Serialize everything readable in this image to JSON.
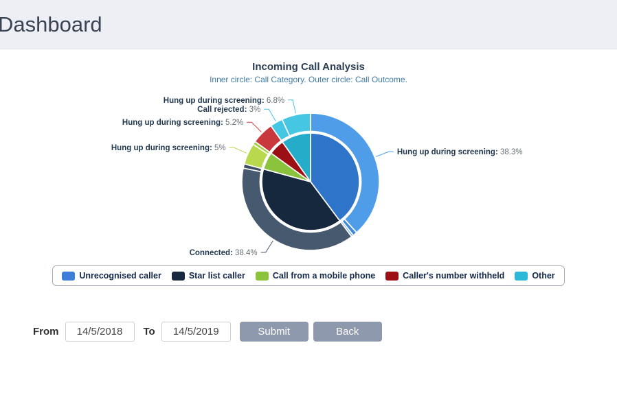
{
  "header": {
    "title": "Dashboard"
  },
  "chart_data": {
    "type": "pie",
    "variant": "two-ring-sunburst",
    "title": "Incoming Call Analysis",
    "subtitle": "Inner circle: Call Category. Outer circle: Call Outcome.",
    "inner_ring": {
      "name": "Call Category",
      "slices": [
        {
          "label": "Unrecognised caller",
          "value": 39.8,
          "color": "#2e74c9"
        },
        {
          "label": "Star list caller",
          "value": 39.4,
          "color": "#16283e"
        },
        {
          "label": "Call from a mobile phone",
          "value": 5.8,
          "color": "#8bc43c"
        },
        {
          "label": "Caller's number withheld",
          "value": 5.2,
          "color": "#9c1015"
        },
        {
          "label": "Other",
          "value": 9.8,
          "color": "#25acc9"
        }
      ]
    },
    "outer_ring": {
      "name": "Call Outcome",
      "slices": [
        {
          "label": "Hung up during screening",
          "pct_text": "38.3%",
          "value": 38.3,
          "color": "#4f9de8",
          "labeled": true
        },
        {
          "label": "",
          "pct_text": "",
          "value": 1.0,
          "color": "#3f88da",
          "labeled": false
        },
        {
          "label": "",
          "pct_text": "",
          "value": 0.5,
          "color": "#74aeeb",
          "labeled": false
        },
        {
          "label": "Connected",
          "pct_text": "38.4%",
          "value": 38.4,
          "color": "#47596e",
          "labeled": true
        },
        {
          "label": "",
          "pct_text": "",
          "value": 1.0,
          "color": "#3c4e63",
          "labeled": false
        },
        {
          "label": "Hung up during screening",
          "pct_text": "5%",
          "value": 5.0,
          "color": "#b8d84e",
          "labeled": true
        },
        {
          "label": "",
          "pct_text": "",
          "value": 0.8,
          "color": "#a6cf45",
          "labeled": false
        },
        {
          "label": "Hung up during screening",
          "pct_text": "5.2%",
          "value": 5.2,
          "color": "#c9383c",
          "labeled": true
        },
        {
          "label": "Call rejected",
          "pct_text": "3%",
          "value": 3.0,
          "color": "#45c6e3",
          "labeled": true
        },
        {
          "label": "Hung up during screening",
          "pct_text": "6.8%",
          "value": 6.8,
          "color": "#45c6e3",
          "labeled": true
        }
      ]
    },
    "legend": {
      "position": "bottom",
      "items": [
        {
          "label": "Unrecognised caller",
          "color": "#3b7dd8"
        },
        {
          "label": "Star list caller",
          "color": "#16283e"
        },
        {
          "label": "Call from a mobile phone",
          "color": "#8bc43c"
        },
        {
          "label": "Caller's number withheld",
          "color": "#9c1015"
        },
        {
          "label": "Other",
          "color": "#2cb8d8"
        }
      ]
    },
    "label_styles": {
      "name_color": "#223950",
      "value_color": "#666f75"
    }
  },
  "filter_bar": {
    "from_label": "From",
    "from_value": "14/5/2018",
    "to_label": "To",
    "to_value": "14/5/2019",
    "submit_label": "Submit",
    "back_label": "Back"
  }
}
